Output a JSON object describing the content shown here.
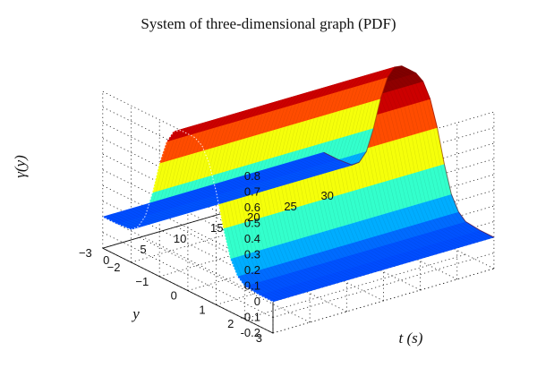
{
  "chart_data": {
    "type": "surface",
    "title": "System of three-dimensional graph (PDF)",
    "xlabel": "t (s)",
    "ylabel": "y",
    "zlabel": "γ(y)",
    "x_ticks": [
      0,
      5,
      10,
      15,
      20,
      25,
      30
    ],
    "y_ticks": [
      3,
      2,
      1,
      0,
      -1,
      -2,
      -3
    ],
    "z_ticks": [
      0.8,
      0.7,
      0.6,
      0.5,
      0.4,
      0.3,
      0.2,
      0.1,
      0,
      -0.1,
      -0.2
    ],
    "xlim": [
      0,
      30
    ],
    "ylim": [
      -3,
      3
    ],
    "zlim": [
      -0.2,
      0.8
    ],
    "grid": true,
    "colormap": "jet",
    "y": [
      3.0,
      2.5,
      2.0,
      1.75,
      1.5,
      1.25,
      1.0,
      0.75,
      0.5,
      0.25,
      0.0,
      -0.25,
      -0.5,
      -0.75,
      -1.0,
      -1.25,
      -1.5,
      -1.75,
      -2.0,
      -2.5,
      -3.0
    ],
    "gamma": [
      0.0,
      0.0,
      0.01,
      0.05,
      0.14,
      0.31,
      0.52,
      0.68,
      0.77,
      0.8,
      0.8,
      0.8,
      0.77,
      0.68,
      0.52,
      0.31,
      0.14,
      0.05,
      0.01,
      0.0,
      0.0
    ],
    "note_series_constant_in_t": true
  }
}
